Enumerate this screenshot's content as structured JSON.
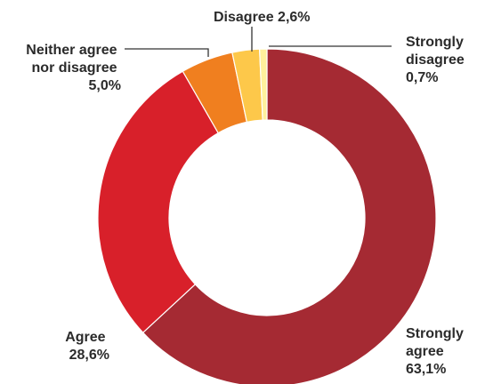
{
  "chart_data": {
    "type": "pie",
    "donut": true,
    "categories": [
      "Strongly agree",
      "Agree",
      "Neither agree nor disagree",
      "Disagree",
      "Strongly disagree"
    ],
    "values": [
      63.1,
      28.6,
      5.0,
      2.6,
      0.7
    ],
    "colors": [
      "#a52a33",
      "#d8202a",
      "#f07f1f",
      "#fdc84a",
      "#fff19c"
    ],
    "labels": {
      "strongly_agree": {
        "lines": [
          "Strongly",
          "agree",
          "63,1%"
        ]
      },
      "agree": {
        "lines": [
          "Agree",
          "28,6%"
        ]
      },
      "neither": {
        "lines": [
          "Neither agree",
          "nor disagree",
          "5,0%"
        ]
      },
      "disagree": {
        "lines": [
          "Disagree 2,6%"
        ]
      },
      "strongly_disagree": {
        "lines": [
          "Strongly",
          "disagree",
          "0,7%"
        ]
      }
    },
    "title": "",
    "legend": "none"
  }
}
